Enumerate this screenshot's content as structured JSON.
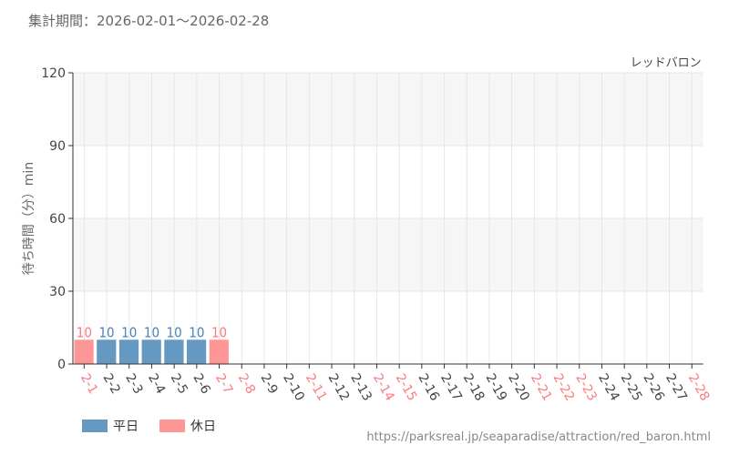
{
  "header": {
    "period": "集計期間：2026-02-01～2026-02-28"
  },
  "footer": {
    "url": "https://parksreal.jp/seaparadise/attraction/red_baron.html"
  },
  "colors": {
    "weekday": "#6699c2",
    "holiday": "#ff9696",
    "weekday_label": "#4a82b4",
    "holiday_label": "#ff7a7a"
  },
  "chart_data": {
    "type": "bar",
    "title": "レッドバロン",
    "ylabel": "待ち時間（分）min",
    "xlabel": "",
    "ylim": [
      0,
      120
    ],
    "yticks": [
      0,
      30,
      60,
      90,
      120
    ],
    "grid": true,
    "legend_placement": "bottom-left",
    "legend": [
      {
        "name": "平日",
        "key": "weekday"
      },
      {
        "name": "休日",
        "key": "holiday"
      }
    ],
    "categories": [
      "2-1",
      "2-2",
      "2-3",
      "2-4",
      "2-5",
      "2-6",
      "2-7",
      "2-8",
      "2-9",
      "2-10",
      "2-11",
      "2-12",
      "2-13",
      "2-14",
      "2-15",
      "2-16",
      "2-17",
      "2-18",
      "2-19",
      "2-20",
      "2-21",
      "2-22",
      "2-23",
      "2-24",
      "2-25",
      "2-26",
      "2-27",
      "2-28"
    ],
    "holiday": [
      true,
      false,
      false,
      false,
      false,
      false,
      true,
      true,
      false,
      false,
      true,
      false,
      false,
      true,
      true,
      false,
      false,
      false,
      false,
      false,
      true,
      true,
      true,
      false,
      false,
      false,
      false,
      true
    ],
    "values": [
      10,
      10,
      10,
      10,
      10,
      10,
      10,
      null,
      null,
      null,
      null,
      null,
      null,
      null,
      null,
      null,
      null,
      null,
      null,
      null,
      null,
      null,
      null,
      null,
      null,
      null,
      null,
      null
    ]
  }
}
